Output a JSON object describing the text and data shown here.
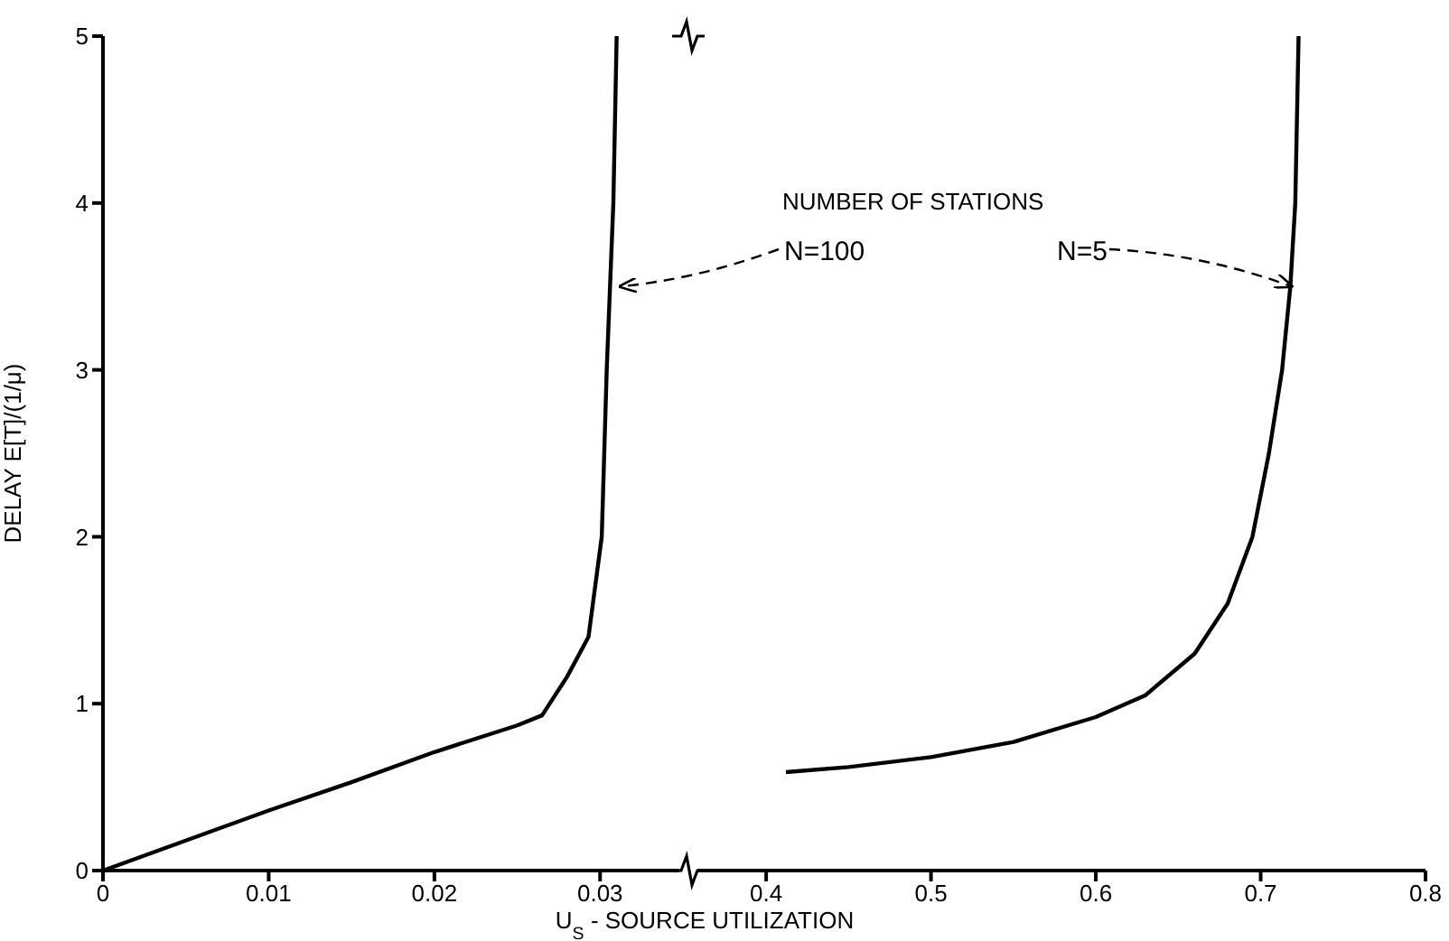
{
  "chart_data": [
    {
      "type": "line",
      "ylabel": "DELAY E[T]/(1/μ)",
      "xlim": [
        0,
        0.035
      ],
      "xticks": [
        0,
        0.01,
        0.02,
        0.03
      ],
      "ylim": [
        0,
        5
      ],
      "yticks": [
        0,
        1,
        2,
        3,
        4,
        5
      ],
      "grid": false,
      "legend": false,
      "marker": "none",
      "line_style": "solid",
      "annotations": [
        {
          "text": "N=100",
          "x": 0.0309,
          "y": 3.5
        }
      ],
      "series": [
        {
          "color": "#000000",
          "x": [
            0,
            0.005,
            0.01,
            0.015,
            0.02,
            0.025,
            0.0265,
            0.028,
            0.0293,
            0.0301,
            0.0304,
            0.0308,
            0.031
          ],
          "values": [
            0,
            0.18,
            0.36,
            0.53,
            0.71,
            0.87,
            0.93,
            1.16,
            1.4,
            2.0,
            3.0,
            4.0,
            5.0
          ]
        }
      ]
    },
    {
      "type": "line",
      "xlabel": "U$_{S}$ - SOURCE UTILIZATION",
      "xlim": [
        0.355,
        0.8
      ],
      "xticks": [
        0.4,
        0.5,
        0.6,
        0.7,
        0.8
      ],
      "ylim": [
        0,
        5
      ],
      "tick_labels": "x",
      "grid": false,
      "legend": false,
      "marker": "none",
      "line_style": "solid",
      "annotations": [
        "NUMBER OF STATIONS",
        {
          "text": "N=5",
          "x": 0.722,
          "y": 3.5
        }
      ],
      "series": [
        {
          "color": "#000000",
          "x": [
            0.412,
            0.45,
            0.5,
            0.55,
            0.6,
            0.63,
            0.66,
            0.68,
            0.695,
            0.705,
            0.713,
            0.718,
            0.721,
            0.723
          ],
          "values": [
            0.59,
            0.62,
            0.68,
            0.77,
            0.92,
            1.05,
            1.3,
            1.6,
            2.0,
            2.5,
            3.0,
            3.5,
            4.0,
            5.0
          ]
        }
      ]
    }
  ]
}
